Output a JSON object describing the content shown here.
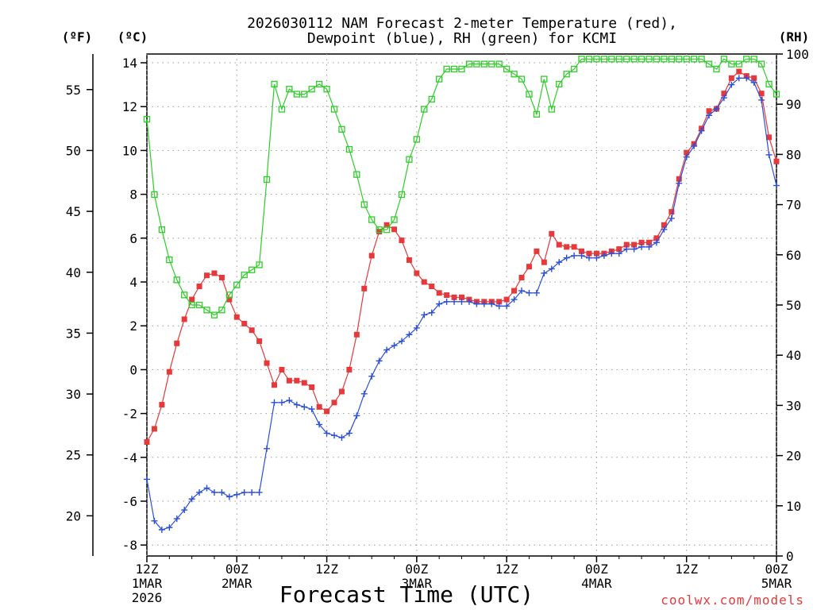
{
  "chart_data": {
    "type": "line",
    "title": "2026030112 NAM Forecast 2-meter Temperature (red),",
    "subtitle": "Dewpoint (blue), RH (green) for KCMI",
    "xlabel": "Forecast Time (UTC)",
    "credit": "coolwx.com/models",
    "units": {
      "fahrenheit": "(ºF)",
      "celsius": "(ºC)",
      "rh": "(RH)"
    },
    "x_range_hours": [
      0,
      84
    ],
    "x_ticks": [
      {
        "hour": 0,
        "line1": "12Z",
        "line2": "1MAR",
        "line3": "2026"
      },
      {
        "hour": 12,
        "line1": "00Z",
        "line2": "2MAR",
        "line3": ""
      },
      {
        "hour": 24,
        "line1": "12Z",
        "line2": "",
        "line3": ""
      },
      {
        "hour": 36,
        "line1": "00Z",
        "line2": "3MAR",
        "line3": ""
      },
      {
        "hour": 48,
        "line1": "12Z",
        "line2": "",
        "line3": ""
      },
      {
        "hour": 60,
        "line1": "00Z",
        "line2": "4MAR",
        "line3": ""
      },
      {
        "hour": 72,
        "line1": "12Z",
        "line2": "",
        "line3": ""
      },
      {
        "hour": 84,
        "line1": "00Z",
        "line2": "5MAR",
        "line3": ""
      }
    ],
    "ylim_celsius": [
      -8.5,
      14.4
    ],
    "ylim_rh": [
      0,
      100
    ],
    "celsius_ticks": [
      -8,
      -6,
      -4,
      -2,
      0,
      2,
      4,
      6,
      8,
      10,
      12,
      14
    ],
    "fahrenheit_ticks": [
      20,
      25,
      30,
      35,
      40,
      45,
      50,
      55
    ],
    "rh_ticks": [
      0,
      10,
      20,
      30,
      40,
      50,
      60,
      70,
      80,
      90,
      100
    ],
    "series": [
      {
        "name": "2-meter Temperature",
        "unit": "C",
        "color": "#e5393b",
        "marker": "square-filled",
        "values": [
          [
            0,
            -3.3
          ],
          [
            1,
            -2.7
          ],
          [
            2,
            -1.6
          ],
          [
            3,
            -0.1
          ],
          [
            4,
            1.2
          ],
          [
            5,
            2.3
          ],
          [
            6,
            3.2
          ],
          [
            7,
            3.8
          ],
          [
            8,
            4.3
          ],
          [
            9,
            4.4
          ],
          [
            10,
            4.2
          ],
          [
            11,
            3.2
          ],
          [
            12,
            2.4
          ],
          [
            13,
            2.1
          ],
          [
            14,
            1.8
          ],
          [
            15,
            1.3
          ],
          [
            16,
            0.3
          ],
          [
            17,
            -0.7
          ],
          [
            18,
            0.0
          ],
          [
            19,
            -0.5
          ],
          [
            20,
            -0.5
          ],
          [
            21,
            -0.6
          ],
          [
            22,
            -0.8
          ],
          [
            23,
            -1.7
          ],
          [
            24,
            -1.9
          ],
          [
            25,
            -1.5
          ],
          [
            26,
            -1.0
          ],
          [
            27,
            0.0
          ],
          [
            28,
            1.6
          ],
          [
            29,
            3.7
          ],
          [
            30,
            5.2
          ],
          [
            31,
            6.3
          ],
          [
            32,
            6.6
          ],
          [
            33,
            6.4
          ],
          [
            34,
            5.9
          ],
          [
            35,
            5.0
          ],
          [
            36,
            4.4
          ],
          [
            37,
            4.0
          ],
          [
            38,
            3.8
          ],
          [
            39,
            3.5
          ],
          [
            40,
            3.4
          ],
          [
            41,
            3.3
          ],
          [
            42,
            3.3
          ],
          [
            43,
            3.2
          ],
          [
            44,
            3.1
          ],
          [
            45,
            3.1
          ],
          [
            46,
            3.1
          ],
          [
            47,
            3.1
          ],
          [
            48,
            3.2
          ],
          [
            49,
            3.6
          ],
          [
            50,
            4.2
          ],
          [
            51,
            4.7
          ],
          [
            52,
            5.4
          ],
          [
            53,
            4.9
          ],
          [
            54,
            6.2
          ],
          [
            55,
            5.7
          ],
          [
            56,
            5.6
          ],
          [
            57,
            5.6
          ],
          [
            58,
            5.4
          ],
          [
            59,
            5.3
          ],
          [
            60,
            5.3
          ],
          [
            61,
            5.3
          ],
          [
            62,
            5.4
          ],
          [
            63,
            5.5
          ],
          [
            64,
            5.7
          ],
          [
            65,
            5.7
          ],
          [
            66,
            5.8
          ],
          [
            67,
            5.8
          ],
          [
            68,
            6.0
          ],
          [
            69,
            6.6
          ],
          [
            70,
            7.2
          ],
          [
            71,
            8.7
          ],
          [
            72,
            9.9
          ],
          [
            73,
            10.3
          ],
          [
            74,
            11.0
          ],
          [
            75,
            11.8
          ],
          [
            76,
            11.9
          ],
          [
            77,
            12.6
          ],
          [
            78,
            13.3
          ],
          [
            79,
            13.6
          ],
          [
            80,
            13.4
          ],
          [
            81,
            13.3
          ],
          [
            82,
            12.6
          ],
          [
            83,
            10.6
          ],
          [
            84,
            9.5
          ]
        ]
      },
      {
        "name": "2-meter Dewpoint",
        "unit": "C",
        "color": "#2b4fd8",
        "marker": "plus",
        "values": [
          [
            0,
            -5.0
          ],
          [
            1,
            -6.9
          ],
          [
            2,
            -7.3
          ],
          [
            3,
            -7.2
          ],
          [
            4,
            -6.8
          ],
          [
            5,
            -6.4
          ],
          [
            6,
            -5.9
          ],
          [
            7,
            -5.6
          ],
          [
            8,
            -5.4
          ],
          [
            9,
            -5.6
          ],
          [
            10,
            -5.6
          ],
          [
            11,
            -5.8
          ],
          [
            12,
            -5.7
          ],
          [
            13,
            -5.6
          ],
          [
            14,
            -5.6
          ],
          [
            15,
            -5.6
          ],
          [
            16,
            -3.6
          ],
          [
            17,
            -1.5
          ],
          [
            18,
            -1.5
          ],
          [
            19,
            -1.4
          ],
          [
            20,
            -1.6
          ],
          [
            21,
            -1.7
          ],
          [
            22,
            -1.8
          ],
          [
            23,
            -2.5
          ],
          [
            24,
            -2.9
          ],
          [
            25,
            -3.0
          ],
          [
            26,
            -3.1
          ],
          [
            27,
            -2.9
          ],
          [
            28,
            -2.1
          ],
          [
            29,
            -1.1
          ],
          [
            30,
            -0.3
          ],
          [
            31,
            0.4
          ],
          [
            32,
            0.9
          ],
          [
            33,
            1.1
          ],
          [
            34,
            1.3
          ],
          [
            35,
            1.6
          ],
          [
            36,
            1.9
          ],
          [
            37,
            2.5
          ],
          [
            38,
            2.6
          ],
          [
            39,
            3.0
          ],
          [
            40,
            3.1
          ],
          [
            41,
            3.1
          ],
          [
            42,
            3.1
          ],
          [
            43,
            3.1
          ],
          [
            44,
            3.0
          ],
          [
            45,
            3.0
          ],
          [
            46,
            3.0
          ],
          [
            47,
            2.9
          ],
          [
            48,
            2.9
          ],
          [
            49,
            3.2
          ],
          [
            50,
            3.6
          ],
          [
            51,
            3.5
          ],
          [
            52,
            3.5
          ],
          [
            53,
            4.4
          ],
          [
            54,
            4.6
          ],
          [
            55,
            4.9
          ],
          [
            56,
            5.1
          ],
          [
            57,
            5.2
          ],
          [
            58,
            5.2
          ],
          [
            59,
            5.1
          ],
          [
            60,
            5.1
          ],
          [
            61,
            5.2
          ],
          [
            62,
            5.3
          ],
          [
            63,
            5.3
          ],
          [
            64,
            5.5
          ],
          [
            65,
            5.5
          ],
          [
            66,
            5.6
          ],
          [
            67,
            5.6
          ],
          [
            68,
            5.8
          ],
          [
            69,
            6.4
          ],
          [
            70,
            6.9
          ],
          [
            71,
            8.5
          ],
          [
            72,
            9.7
          ],
          [
            73,
            10.2
          ],
          [
            74,
            10.9
          ],
          [
            75,
            11.6
          ],
          [
            76,
            11.9
          ],
          [
            77,
            12.4
          ],
          [
            78,
            13.0
          ],
          [
            79,
            13.3
          ],
          [
            80,
            13.3
          ],
          [
            81,
            13.1
          ],
          [
            82,
            12.3
          ],
          [
            83,
            9.8
          ],
          [
            84,
            8.4
          ]
        ]
      },
      {
        "name": "Relative Humidity",
        "unit": "%",
        "color": "#2fcc2a",
        "marker": "square-open",
        "values": [
          [
            0,
            87
          ],
          [
            1,
            72
          ],
          [
            2,
            65
          ],
          [
            3,
            59
          ],
          [
            4,
            55
          ],
          [
            5,
            52
          ],
          [
            6,
            50
          ],
          [
            7,
            50
          ],
          [
            8,
            49
          ],
          [
            9,
            48
          ],
          [
            10,
            49
          ],
          [
            11,
            52
          ],
          [
            12,
            54
          ],
          [
            13,
            56
          ],
          [
            14,
            57
          ],
          [
            15,
            58
          ],
          [
            16,
            75
          ],
          [
            17,
            94
          ],
          [
            18,
            89
          ],
          [
            19,
            93
          ],
          [
            20,
            92
          ],
          [
            21,
            92
          ],
          [
            22,
            93
          ],
          [
            23,
            94
          ],
          [
            24,
            93
          ],
          [
            25,
            89
          ],
          [
            26,
            85
          ],
          [
            27,
            81
          ],
          [
            28,
            76
          ],
          [
            29,
            70
          ],
          [
            30,
            67
          ],
          [
            31,
            65
          ],
          [
            32,
            65
          ],
          [
            33,
            67
          ],
          [
            34,
            72
          ],
          [
            35,
            79
          ],
          [
            36,
            83
          ],
          [
            37,
            89
          ],
          [
            38,
            91
          ],
          [
            39,
            95
          ],
          [
            40,
            97
          ],
          [
            41,
            97
          ],
          [
            42,
            97
          ],
          [
            43,
            98
          ],
          [
            44,
            98
          ],
          [
            45,
            98
          ],
          [
            46,
            98
          ],
          [
            47,
            98
          ],
          [
            48,
            97
          ],
          [
            49,
            96
          ],
          [
            50,
            95
          ],
          [
            51,
            92
          ],
          [
            52,
            88
          ],
          [
            53,
            95
          ],
          [
            54,
            89
          ],
          [
            55,
            94
          ],
          [
            56,
            96
          ],
          [
            57,
            97
          ],
          [
            58,
            99
          ],
          [
            59,
            99
          ],
          [
            60,
            99
          ],
          [
            61,
            99
          ],
          [
            62,
            99
          ],
          [
            63,
            99
          ],
          [
            64,
            99
          ],
          [
            65,
            99
          ],
          [
            66,
            99
          ],
          [
            67,
            99
          ],
          [
            68,
            99
          ],
          [
            69,
            99
          ],
          [
            70,
            99
          ],
          [
            71,
            99
          ],
          [
            72,
            99
          ],
          [
            73,
            99
          ],
          [
            74,
            99
          ],
          [
            75,
            98
          ],
          [
            76,
            97
          ],
          [
            77,
            99
          ],
          [
            78,
            98
          ],
          [
            79,
            98
          ],
          [
            80,
            99
          ],
          [
            81,
            99
          ],
          [
            82,
            98
          ],
          [
            83,
            94
          ],
          [
            84,
            92
          ]
        ]
      }
    ]
  }
}
